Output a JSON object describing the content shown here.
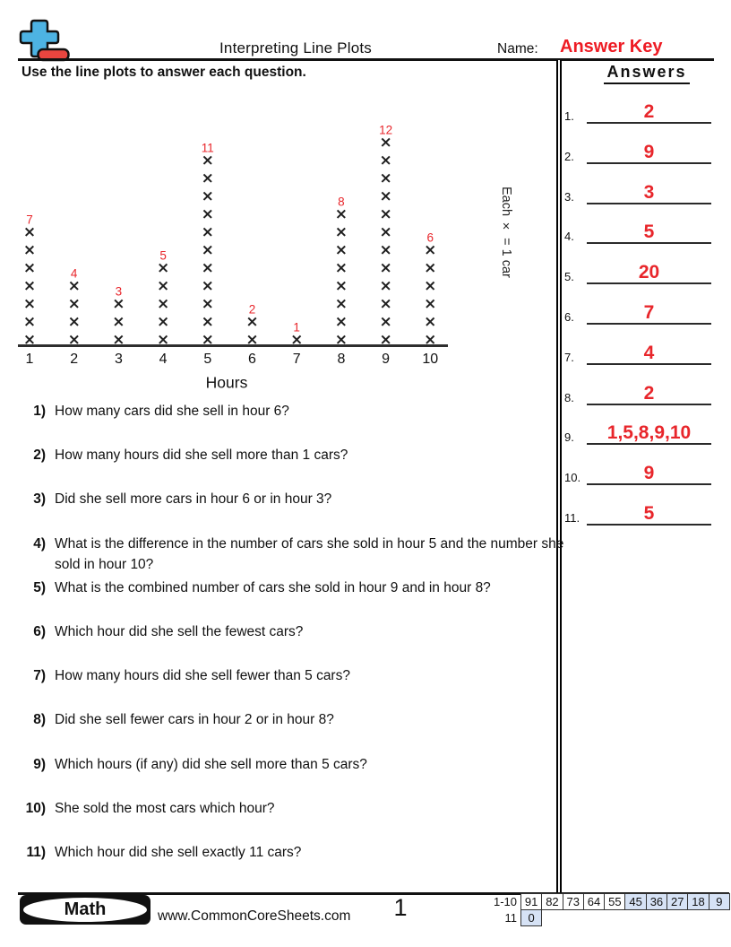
{
  "header": {
    "title": "Interpreting Line Plots",
    "name_label": "Name:",
    "answer_key": "Answer Key",
    "instruction": "Use the line plots to answer each question.",
    "colors": {
      "answer_key_red": "#ee1c24",
      "logo_plus_blue": "#4db3e3",
      "logo_minus_red": "#e9453f"
    }
  },
  "chart_data": {
    "type": "line_plot",
    "x": [
      "1",
      "2",
      "3",
      "4",
      "5",
      "6",
      "7",
      "8",
      "9",
      "10"
    ],
    "values": [
      7,
      4,
      3,
      5,
      11,
      2,
      1,
      8,
      12,
      6
    ],
    "marker": "×",
    "xlabel": "Hours",
    "legend": "Each × = 1 car",
    "ylim": [
      0,
      12
    ],
    "count_label_color": "#e8262b",
    "marker_color": "#1f1f1f"
  },
  "questions": [
    {
      "num": "1)",
      "text": "How many cars did she sell in hour 6?"
    },
    {
      "num": "2)",
      "text": "How many hours did she sell more than 1 cars?"
    },
    {
      "num": "3)",
      "text": "Did she sell more cars in hour 6 or in hour 3?"
    },
    {
      "num": "4)",
      "text": "What is the difference in the number of cars she sold in hour 5 and the number she sold in hour 10?"
    },
    {
      "num": "5)",
      "text": "What is the combined number of cars she sold in hour 9 and in hour 8?"
    },
    {
      "num": "6)",
      "text": "Which hour did she sell the fewest cars?"
    },
    {
      "num": "7)",
      "text": "How many hours did she sell fewer than 5 cars?"
    },
    {
      "num": "8)",
      "text": "Did she sell fewer cars in hour 2 or in hour 8?"
    },
    {
      "num": "9)",
      "text": "Which hours (if any) did she sell more than 5 cars?"
    },
    {
      "num": "10)",
      "text": "She sold the most cars which hour?"
    },
    {
      "num": "11)",
      "text": "Which hour did she sell exactly 11 cars?"
    }
  ],
  "answers_panel": {
    "heading": "Answers",
    "answer_color": "#e8262b",
    "items": [
      {
        "num": "1.",
        "value": "2"
      },
      {
        "num": "2.",
        "value": "9"
      },
      {
        "num": "3.",
        "value": "3"
      },
      {
        "num": "4.",
        "value": "5"
      },
      {
        "num": "5.",
        "value": "20"
      },
      {
        "num": "6.",
        "value": "7"
      },
      {
        "num": "7.",
        "value": "4"
      },
      {
        "num": "8.",
        "value": "2"
      },
      {
        "num": "9.",
        "value": "1,5,8,9,10"
      },
      {
        "num": "10.",
        "value": "9"
      },
      {
        "num": "11.",
        "value": "5"
      }
    ]
  },
  "footer": {
    "badge": "Math",
    "site": "www.CommonCoreSheets.com",
    "page_number": "1",
    "score_table": {
      "highlight_color": "#d6e2f5",
      "rows": [
        {
          "label": "1-10",
          "cells": [
            {
              "v": "91",
              "hl": false
            },
            {
              "v": "82",
              "hl": false
            },
            {
              "v": "73",
              "hl": false
            },
            {
              "v": "64",
              "hl": false
            },
            {
              "v": "55",
              "hl": false
            },
            {
              "v": "45",
              "hl": true
            },
            {
              "v": "36",
              "hl": true
            },
            {
              "v": "27",
              "hl": true
            },
            {
              "v": "18",
              "hl": true
            },
            {
              "v": "9",
              "hl": true
            }
          ]
        },
        {
          "label": "11",
          "cells": [
            {
              "v": "0",
              "hl": true
            }
          ]
        }
      ]
    }
  }
}
